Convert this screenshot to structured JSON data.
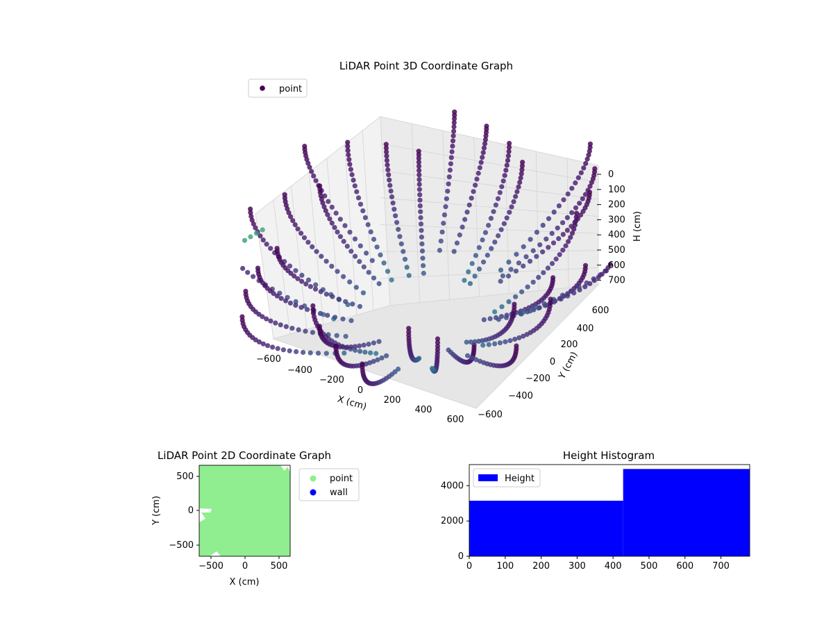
{
  "colors": {
    "scatter_low": "#440154",
    "scatter_mid": "#3b528b",
    "scatter_teal": "#21918c",
    "scatter_high": "#a0da39",
    "point_2d": "#90ee90",
    "wall_2d": "#0000ff",
    "histogram": "#0000ff"
  },
  "chart_data": [
    {
      "type": "scatter",
      "projection": "3d",
      "title": "LiDAR Point 3D Coordinate Graph",
      "xlabel": "X (cm)",
      "ylabel": "Y (cm)",
      "zlabel": "H (cm)",
      "x_ticks": [
        "−600",
        "−400",
        "−200",
        "0",
        "200",
        "400",
        "600"
      ],
      "y_ticks": [
        "−600",
        "−400",
        "−200",
        "0",
        "200",
        "400",
        "600"
      ],
      "z_ticks": [
        "0",
        "100",
        "200",
        "300",
        "400",
        "500",
        "600",
        "700"
      ],
      "zlim": [
        0,
        720
      ],
      "z_inverted": true,
      "grid": true,
      "legend": {
        "position": "upper-left",
        "entries": [
          "point"
        ]
      },
      "series": [
        {
          "name": "point",
          "colormap": "viridis by height",
          "description_rings": [
            {
              "radius": 500,
              "height_top": 0,
              "height_bottom": 480
            },
            {
              "radius": 560,
              "height_top": 40,
              "height_bottom": 520
            },
            {
              "radius": 620,
              "height_top": 120,
              "height_bottom": 560
            },
            {
              "radius": 680,
              "height_top": 180,
              "height_bottom": 620
            }
          ]
        }
      ]
    },
    {
      "type": "scatter",
      "title": "LiDAR Point 2D Coordinate Graph",
      "xlabel": "X (cm)",
      "ylabel": "Y (cm)",
      "xlim": [
        -680,
        680
      ],
      "ylim": [
        -680,
        680
      ],
      "x_ticks": [
        "−500",
        "0",
        "500"
      ],
      "y_ticks": [
        "−500",
        "0",
        "500"
      ],
      "legend": {
        "position": "outside-right",
        "entries": [
          "point",
          "wall"
        ]
      },
      "series": [
        {
          "name": "point",
          "description": "dense filled region covering nearly the whole square"
        },
        {
          "name": "wall",
          "description": "no visible wall points"
        }
      ]
    },
    {
      "type": "bar",
      "title": "Height Histogram",
      "xlabel": "",
      "ylabel": "",
      "xlim": [
        0,
        780
      ],
      "ylim": [
        0,
        5200
      ],
      "x_ticks": [
        "0",
        "100",
        "200",
        "300",
        "400",
        "500",
        "600",
        "700"
      ],
      "y_ticks": [
        "0",
        "2000",
        "4000"
      ],
      "legend": {
        "position": "upper-left",
        "entries": [
          "Height"
        ]
      },
      "bins": [
        {
          "start": 0,
          "end": 428,
          "count": 3150
        },
        {
          "start": 428,
          "end": 780,
          "count": 4950
        }
      ]
    }
  ]
}
